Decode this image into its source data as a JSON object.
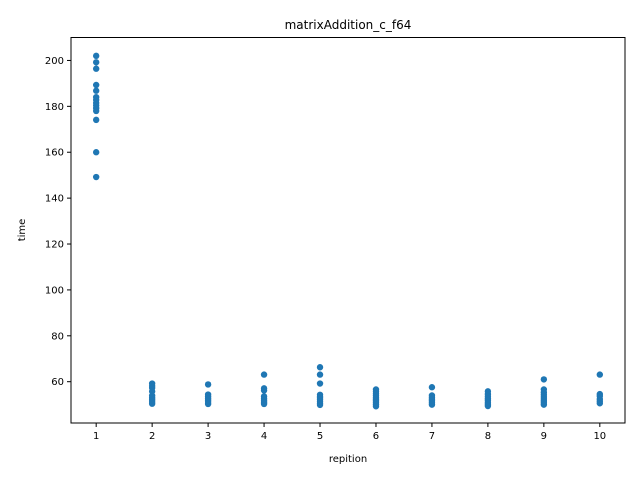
{
  "chart_data": {
    "type": "scatter",
    "title": "matrixAddition_c_f64",
    "xlabel": "repition",
    "ylabel": "time",
    "xlim": [
      0.55,
      10.45
    ],
    "ylim": [
      42,
      210
    ],
    "xticks": [
      1,
      2,
      3,
      4,
      5,
      6,
      7,
      8,
      9,
      10
    ],
    "yticks": [
      60,
      80,
      100,
      120,
      140,
      160,
      180,
      200
    ],
    "grid": false,
    "color": "#1f77b4",
    "series": [
      {
        "points": [
          [
            1,
            202.0
          ],
          [
            1,
            199.2
          ],
          [
            1,
            196.4
          ],
          [
            1,
            189.3
          ],
          [
            1,
            186.8
          ],
          [
            1,
            184.0
          ],
          [
            1,
            182.8
          ],
          [
            1,
            181.5
          ],
          [
            1,
            180.4
          ],
          [
            1,
            179.2
          ],
          [
            1,
            178.0
          ],
          [
            1,
            174.1
          ],
          [
            1,
            160.0
          ],
          [
            1,
            149.2
          ],
          [
            2,
            59.2
          ],
          [
            2,
            58.2
          ],
          [
            2,
            57.3
          ],
          [
            2,
            55.8
          ],
          [
            2,
            53.9
          ],
          [
            2,
            52.9
          ],
          [
            2,
            52.0
          ],
          [
            2,
            51.2
          ],
          [
            2,
            50.4
          ],
          [
            3,
            58.8
          ],
          [
            3,
            54.4
          ],
          [
            3,
            53.5
          ],
          [
            3,
            52.6
          ],
          [
            3,
            51.9
          ],
          [
            3,
            51.2
          ],
          [
            3,
            50.3
          ],
          [
            4,
            63.1
          ],
          [
            4,
            57.1
          ],
          [
            4,
            56.2
          ],
          [
            4,
            53.6
          ],
          [
            4,
            52.7
          ],
          [
            4,
            51.9
          ],
          [
            4,
            51.1
          ],
          [
            4,
            50.3
          ],
          [
            5,
            66.3
          ],
          [
            5,
            63.1
          ],
          [
            5,
            59.2
          ],
          [
            5,
            54.3
          ],
          [
            5,
            53.3
          ],
          [
            5,
            52.4
          ],
          [
            5,
            51.5
          ],
          [
            5,
            50.6
          ],
          [
            5,
            49.9
          ],
          [
            6,
            56.6
          ],
          [
            6,
            55.8
          ],
          [
            6,
            54.9
          ],
          [
            6,
            54.1
          ],
          [
            6,
            53.2
          ],
          [
            6,
            52.4
          ],
          [
            6,
            51.6
          ],
          [
            6,
            50.8
          ],
          [
            6,
            50.0
          ],
          [
            6,
            49.3
          ],
          [
            7,
            57.6
          ],
          [
            7,
            54.0
          ],
          [
            7,
            53.2
          ],
          [
            7,
            52.4
          ],
          [
            7,
            51.6
          ],
          [
            7,
            50.8
          ],
          [
            7,
            50.0
          ],
          [
            8,
            55.8
          ],
          [
            8,
            54.6
          ],
          [
            8,
            53.6
          ],
          [
            8,
            52.6
          ],
          [
            8,
            51.8
          ],
          [
            8,
            51.0
          ],
          [
            8,
            50.2
          ],
          [
            8,
            49.4
          ],
          [
            9,
            61.0
          ],
          [
            9,
            56.6
          ],
          [
            9,
            55.3
          ],
          [
            9,
            54.3
          ],
          [
            9,
            53.4
          ],
          [
            9,
            52.5
          ],
          [
            9,
            51.6
          ],
          [
            9,
            50.8
          ],
          [
            9,
            50.0
          ],
          [
            10,
            63.1
          ],
          [
            10,
            54.6
          ],
          [
            10,
            53.7
          ],
          [
            10,
            52.4
          ],
          [
            10,
            51.5
          ],
          [
            10,
            50.6
          ]
        ]
      }
    ]
  }
}
